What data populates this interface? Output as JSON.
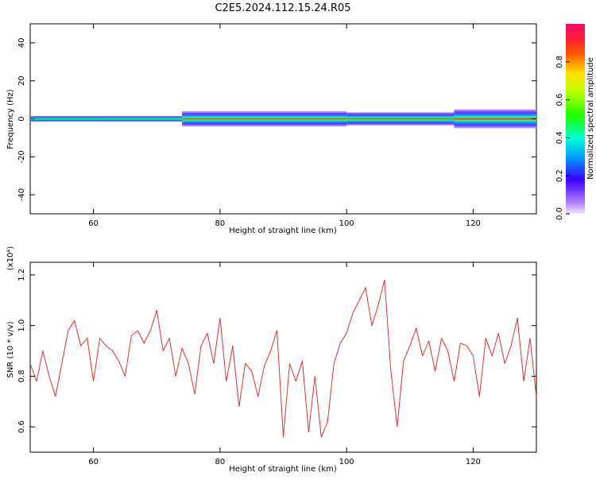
{
  "title": "C2E5.2024.112.15.24.R05",
  "chart_data": [
    {
      "type": "heatmap",
      "xlabel": "Height of straight line (km)",
      "ylabel": "Frequency (Hz)",
      "xlim": [
        50,
        130
      ],
      "ylim": [
        -50,
        50
      ],
      "x_ticks": [
        60,
        80,
        100,
        120
      ],
      "y_ticks": [
        40,
        20,
        0,
        -20,
        -40
      ],
      "colorbar": {
        "label": "Normalized spectral amplitude",
        "range": [
          0,
          1
        ],
        "ticks": [
          "0.0",
          "0.2",
          "0.4",
          "0.6",
          "0.8"
        ]
      },
      "band_center_hz": 0,
      "segments": [
        {
          "x0": 50,
          "x1": 74,
          "halfwidth_hz": 1.5
        },
        {
          "x0": 74,
          "x1": 100,
          "halfwidth_hz": 4
        },
        {
          "x0": 100,
          "x1": 117,
          "halfwidth_hz": 3.5
        },
        {
          "x0": 117,
          "x1": 130,
          "halfwidth_hz": 5
        }
      ]
    },
    {
      "type": "line",
      "xlabel": "Height of straight line (km)",
      "ylabel": "SNR (10 * v/v)",
      "multiplier": "(x10⁴)",
      "xlim": [
        50,
        130
      ],
      "ylim": [
        0.5,
        1.25
      ],
      "x_ticks": [
        60,
        80,
        100,
        120
      ],
      "y_ticks": [
        "0.6",
        "0.8",
        "1.0",
        "1.2"
      ],
      "series": [
        {
          "color": "#e03030",
          "x": [
            50,
            51,
            52,
            53,
            54,
            55,
            56,
            57,
            58,
            59,
            60,
            61,
            62,
            63,
            64,
            65,
            66,
            67,
            68,
            69,
            70,
            71,
            72,
            73,
            74,
            75,
            76,
            77,
            78,
            79,
            80,
            81,
            82,
            83,
            84,
            85,
            86,
            87,
            88,
            89,
            90,
            91,
            92,
            93,
            94,
            95,
            96,
            97,
            98,
            99,
            100,
            101,
            102,
            103,
            104,
            105,
            106,
            107,
            108,
            109,
            110,
            111,
            112,
            113,
            114,
            115,
            116,
            117,
            118,
            119,
            120,
            121,
            122,
            123,
            124,
            125,
            126,
            127,
            128,
            129,
            130
          ],
          "y": [
            0.85,
            0.78,
            0.9,
            0.8,
            0.72,
            0.85,
            0.98,
            1.02,
            0.92,
            0.95,
            0.78,
            0.95,
            0.92,
            0.9,
            0.86,
            0.8,
            0.96,
            0.98,
            0.93,
            0.98,
            1.06,
            0.9,
            0.95,
            0.8,
            0.91,
            0.85,
            0.73,
            0.92,
            0.97,
            0.85,
            1.03,
            0.78,
            0.92,
            0.68,
            0.85,
            0.82,
            0.72,
            0.84,
            0.9,
            0.98,
            0.56,
            0.85,
            0.78,
            0.86,
            0.58,
            0.8,
            0.56,
            0.62,
            0.85,
            0.93,
            0.97,
            1.05,
            1.1,
            1.15,
            1.0,
            1.08,
            1.18,
            0.82,
            0.6,
            0.86,
            0.92,
            0.99,
            0.88,
            0.94,
            0.82,
            0.95,
            0.9,
            0.78,
            0.93,
            0.92,
            0.88,
            0.72,
            0.95,
            0.88,
            0.97,
            0.85,
            0.92,
            1.03,
            0.78,
            0.95,
            0.72
          ]
        }
      ]
    }
  ]
}
